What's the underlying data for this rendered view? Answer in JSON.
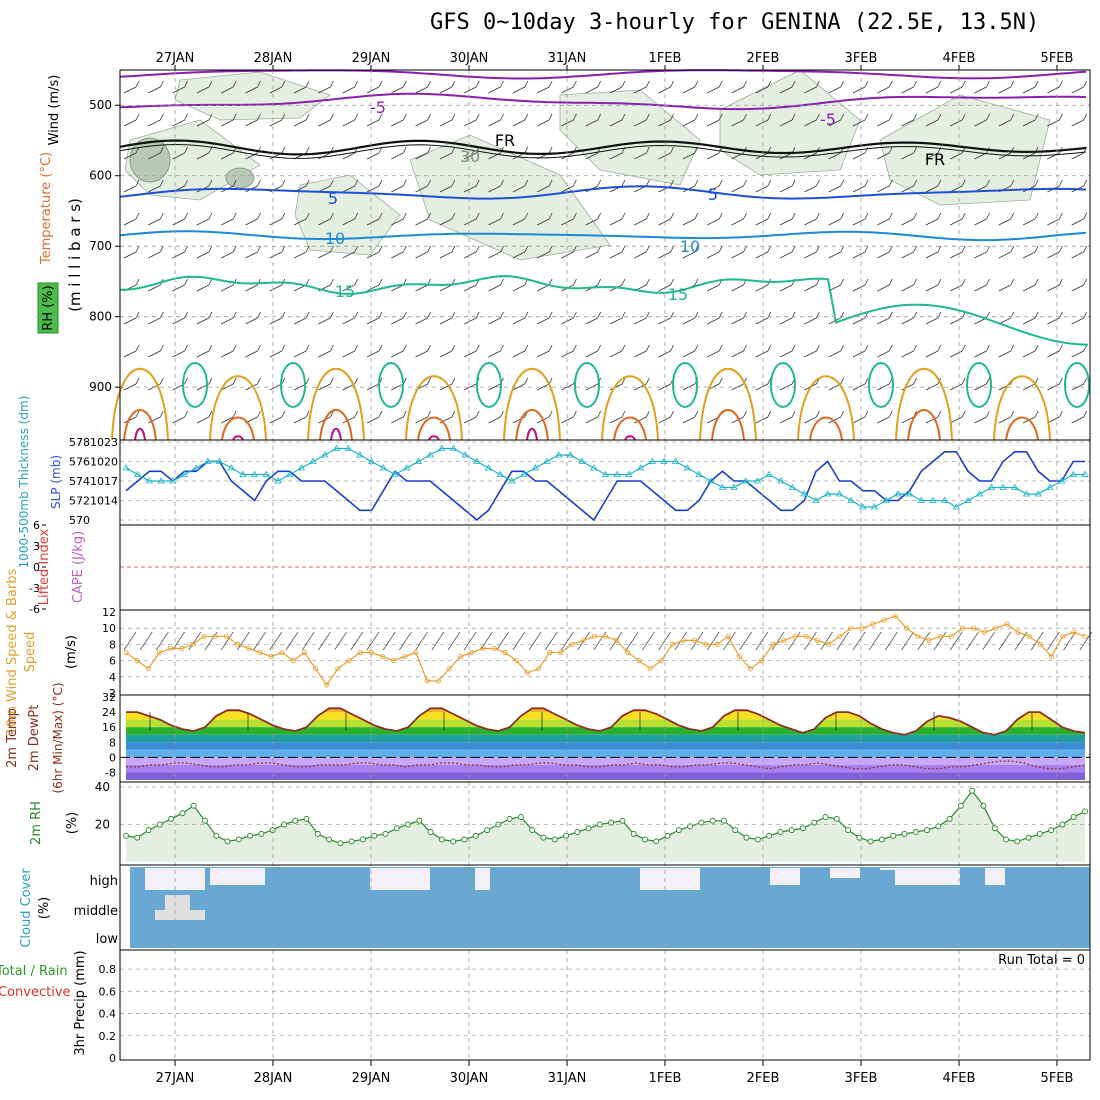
{
  "title": "GFS 0~10day 3-hourly for GENINA (22.5E, 13.5N)",
  "dates": [
    "27JAN",
    "28JAN",
    "29JAN",
    "30JAN",
    "31JAN",
    "1FEB",
    "2FEB",
    "3FEB",
    "4FEB",
    "5FEB"
  ],
  "chart_data": [
    {
      "type": "line",
      "panel": "upper-air cross section",
      "ylabels": [
        "Wind (m/s)",
        "Temperature (°C)",
        "RH (%)",
        "(m i l l i b a r s)"
      ],
      "y_ticks": [
        500,
        600,
        700,
        800,
        900
      ],
      "yrange": [
        450,
        975
      ],
      "contour_labels": [
        "-5",
        "FR",
        "5",
        "10",
        "15",
        "30"
      ],
      "series": [
        {
          "name": "-5",
          "level": 560,
          "color": "#8a1fb0"
        },
        {
          "name": "FR",
          "level": 565,
          "color": "#111111"
        },
        {
          "name": "5",
          "level": 630,
          "color": "#1f4fd8"
        },
        {
          "name": "10",
          "level": 690,
          "color": "#1a8ad8"
        },
        {
          "name": "15",
          "level": 780,
          "color": "#20b890"
        }
      ]
    },
    {
      "type": "line",
      "panel": "thickness and sea level pressure",
      "ylabels": [
        "1000-500mb Thickness (dm)",
        "SLP (mb)"
      ],
      "left_ticks": [
        "578",
        "576",
        "574",
        "572",
        "570"
      ],
      "right_ticks": [
        "1023",
        "1020",
        "1017",
        "1014"
      ],
      "series": [
        {
          "name": "1000-500mb Thickness",
          "color": "#1a3fd0",
          "values": [
            573,
            574,
            575,
            575,
            574,
            575,
            575,
            576,
            576,
            574,
            573,
            572,
            574,
            575,
            575,
            574,
            574,
            574,
            573,
            572,
            571,
            571,
            573,
            575,
            574,
            574,
            574,
            573,
            572,
            571,
            570,
            571,
            573,
            575,
            575,
            574,
            574,
            573,
            572,
            571,
            570,
            572,
            574,
            574,
            574,
            573,
            572,
            571,
            571,
            572,
            574,
            575,
            574,
            574,
            573,
            572,
            571,
            571,
            572,
            575,
            576,
            574,
            574,
            573,
            573,
            572,
            572,
            573,
            575,
            576,
            577,
            577,
            575,
            574,
            574,
            576,
            577,
            577,
            575,
            574,
            574,
            576,
            576
          ]
        },
        {
          "name": "SLP",
          "color": "#1ab4c4",
          "values": [
            1019,
            1018,
            1017,
            1017,
            1017,
            1018,
            1019,
            1020,
            1020,
            1019,
            1018,
            1018,
            1018,
            1017,
            1018,
            1019,
            1020,
            1021,
            1022,
            1022,
            1021,
            1020,
            1019,
            1018,
            1019,
            1020,
            1021,
            1022,
            1022,
            1021,
            1020,
            1019,
            1018,
            1017,
            1018,
            1019,
            1020,
            1021,
            1021,
            1020,
            1019,
            1018,
            1018,
            1018,
            1019,
            1020,
            1020,
            1020,
            1019,
            1018,
            1017,
            1016,
            1016,
            1017,
            1017,
            1018,
            1017,
            1016,
            1015,
            1014,
            1015,
            1015,
            1014,
            1013,
            1013,
            1014,
            1015,
            1015,
            1014,
            1014,
            1014,
            1013,
            1014,
            1015,
            1016,
            1016,
            1016,
            1015,
            1015,
            1016,
            1017,
            1018,
            1018
          ]
        }
      ]
    },
    {
      "type": "line",
      "panel": "instability",
      "ylabels": [
        "Lifted Index",
        "CAPE (J/kg)"
      ],
      "y_ticks": [
        "6",
        "3",
        "0",
        "-3",
        "-6"
      ],
      "series": [
        {
          "name": "Lifted Index",
          "values": []
        }
      ]
    },
    {
      "type": "line",
      "panel": "10m wind",
      "ylabels": [
        "10m Wind Speed & Barbs",
        "(m/s)"
      ],
      "y_ticks": [
        "12",
        "10",
        "8",
        "6",
        "4",
        "2"
      ],
      "series": [
        {
          "name": "10m Wind Speed",
          "color": "#e8a030",
          "values": [
            7,
            6,
            5,
            7,
            7.5,
            7.5,
            8,
            9,
            9,
            9,
            8,
            7.5,
            7,
            6.5,
            7,
            6,
            7,
            5,
            3,
            5,
            6,
            7,
            7,
            6.5,
            6,
            6.5,
            7,
            3.5,
            3.5,
            5,
            6.5,
            7,
            7.5,
            7.5,
            7,
            6,
            4.5,
            5,
            7,
            7,
            8,
            8.5,
            9,
            9,
            8.5,
            7,
            6,
            5,
            6,
            8,
            8.5,
            8.5,
            8,
            8,
            9,
            6.5,
            5,
            6,
            8,
            8.5,
            9,
            9,
            8.5,
            8,
            9,
            10,
            10,
            10.5,
            11,
            11.5,
            10,
            9,
            8.5,
            9,
            9,
            10,
            10,
            9.5,
            10,
            10.5,
            9.5,
            9,
            8,
            6.5,
            9,
            9.5,
            9
          ]
        }
      ]
    },
    {
      "type": "area",
      "panel": "2m temperature",
      "ylabels": [
        "2m Temp",
        "2m DewPt",
        "(6hr Min/Max) (°C)"
      ],
      "y_ticks": [
        "32",
        "24",
        "16",
        "8",
        "0",
        "-8"
      ],
      "series": [
        {
          "name": "2m Temp",
          "values": [
            24,
            24,
            22,
            20,
            17,
            15,
            14,
            16,
            22,
            25,
            25,
            23,
            20,
            17,
            15,
            14,
            16,
            22,
            26,
            26,
            23,
            20,
            17,
            15,
            14,
            16,
            22,
            26,
            26,
            23,
            20,
            17,
            15,
            14,
            16,
            22,
            26,
            26,
            23,
            20,
            17,
            15,
            14,
            16,
            22,
            25,
            25,
            23,
            20,
            17,
            15,
            14,
            16,
            22,
            25,
            25,
            23,
            20,
            17,
            15,
            13,
            15,
            21,
            24,
            24,
            22,
            18,
            15,
            13,
            12,
            14,
            19,
            22,
            21,
            19,
            16,
            13,
            12,
            14,
            20,
            24,
            24,
            20,
            16,
            14,
            13
          ]
        },
        {
          "name": "2m DewPt",
          "values": [
            -5,
            -5,
            -4,
            -4,
            -3,
            -3,
            -4,
            -5,
            -5,
            -4,
            -4,
            -3,
            -3,
            -4,
            -5,
            -5,
            -4,
            -4,
            -4,
            -3,
            -3,
            -4,
            -4,
            -5,
            -4,
            -4,
            -3,
            -3,
            -4,
            -4,
            -5,
            -5,
            -4,
            -4,
            -3,
            -3,
            -4,
            -4,
            -5,
            -5,
            -4,
            -4,
            -3,
            -4,
            -4,
            -5,
            -5,
            -4,
            -4,
            -3,
            -3,
            -4,
            -5,
            -6,
            -5,
            -4,
            -4,
            -3,
            -4,
            -5,
            -6,
            -6,
            -5,
            -4,
            -4,
            -5,
            -6,
            -6,
            -5,
            -5,
            -4,
            -3,
            -2,
            -2,
            -3,
            -5,
            -6,
            -6,
            -5,
            -4
          ]
        }
      ]
    },
    {
      "type": "area",
      "panel": "2m relative humidity",
      "ylabels": [
        "2m RH",
        "(%)"
      ],
      "y_ticks": [
        "40",
        "20"
      ],
      "series": [
        {
          "name": "2m RH",
          "color": "#2a8a2a",
          "values": [
            14,
            13,
            17,
            20,
            23,
            26,
            30,
            22,
            14,
            11,
            12,
            14,
            15,
            17,
            20,
            22,
            23,
            15,
            12,
            10,
            11,
            12,
            14,
            15,
            18,
            20,
            22,
            16,
            12,
            11,
            12,
            14,
            17,
            20,
            23,
            24,
            17,
            13,
            12,
            14,
            16,
            18,
            20,
            21,
            22,
            15,
            12,
            11,
            14,
            17,
            19,
            21,
            22,
            22,
            17,
            13,
            12,
            14,
            16,
            17,
            18,
            21,
            24,
            23,
            17,
            13,
            11,
            12,
            14,
            15,
            16,
            17,
            19,
            23,
            30,
            38,
            30,
            18,
            12,
            11,
            13,
            15,
            17,
            20,
            24,
            27
          ]
        }
      ]
    },
    {
      "type": "area",
      "panel": "cloud cover",
      "ylabels": [
        "Cloud Cover",
        "(%)"
      ],
      "y_ticks": [
        "high",
        "middle",
        "low"
      ],
      "series": [
        {
          "name": "high cloud",
          "values": []
        }
      ]
    },
    {
      "type": "bar",
      "panel": "precipitation",
      "ylabels": [
        "Total / Rain",
        "Convective",
        "3hr Precip (mm)"
      ],
      "y_ticks": [
        "0.8",
        "0.6",
        "0.4",
        "0.2",
        "0"
      ],
      "annotation": "Run Total = 0",
      "series": [
        {
          "name": "3hr Precip",
          "values": []
        }
      ]
    }
  ]
}
